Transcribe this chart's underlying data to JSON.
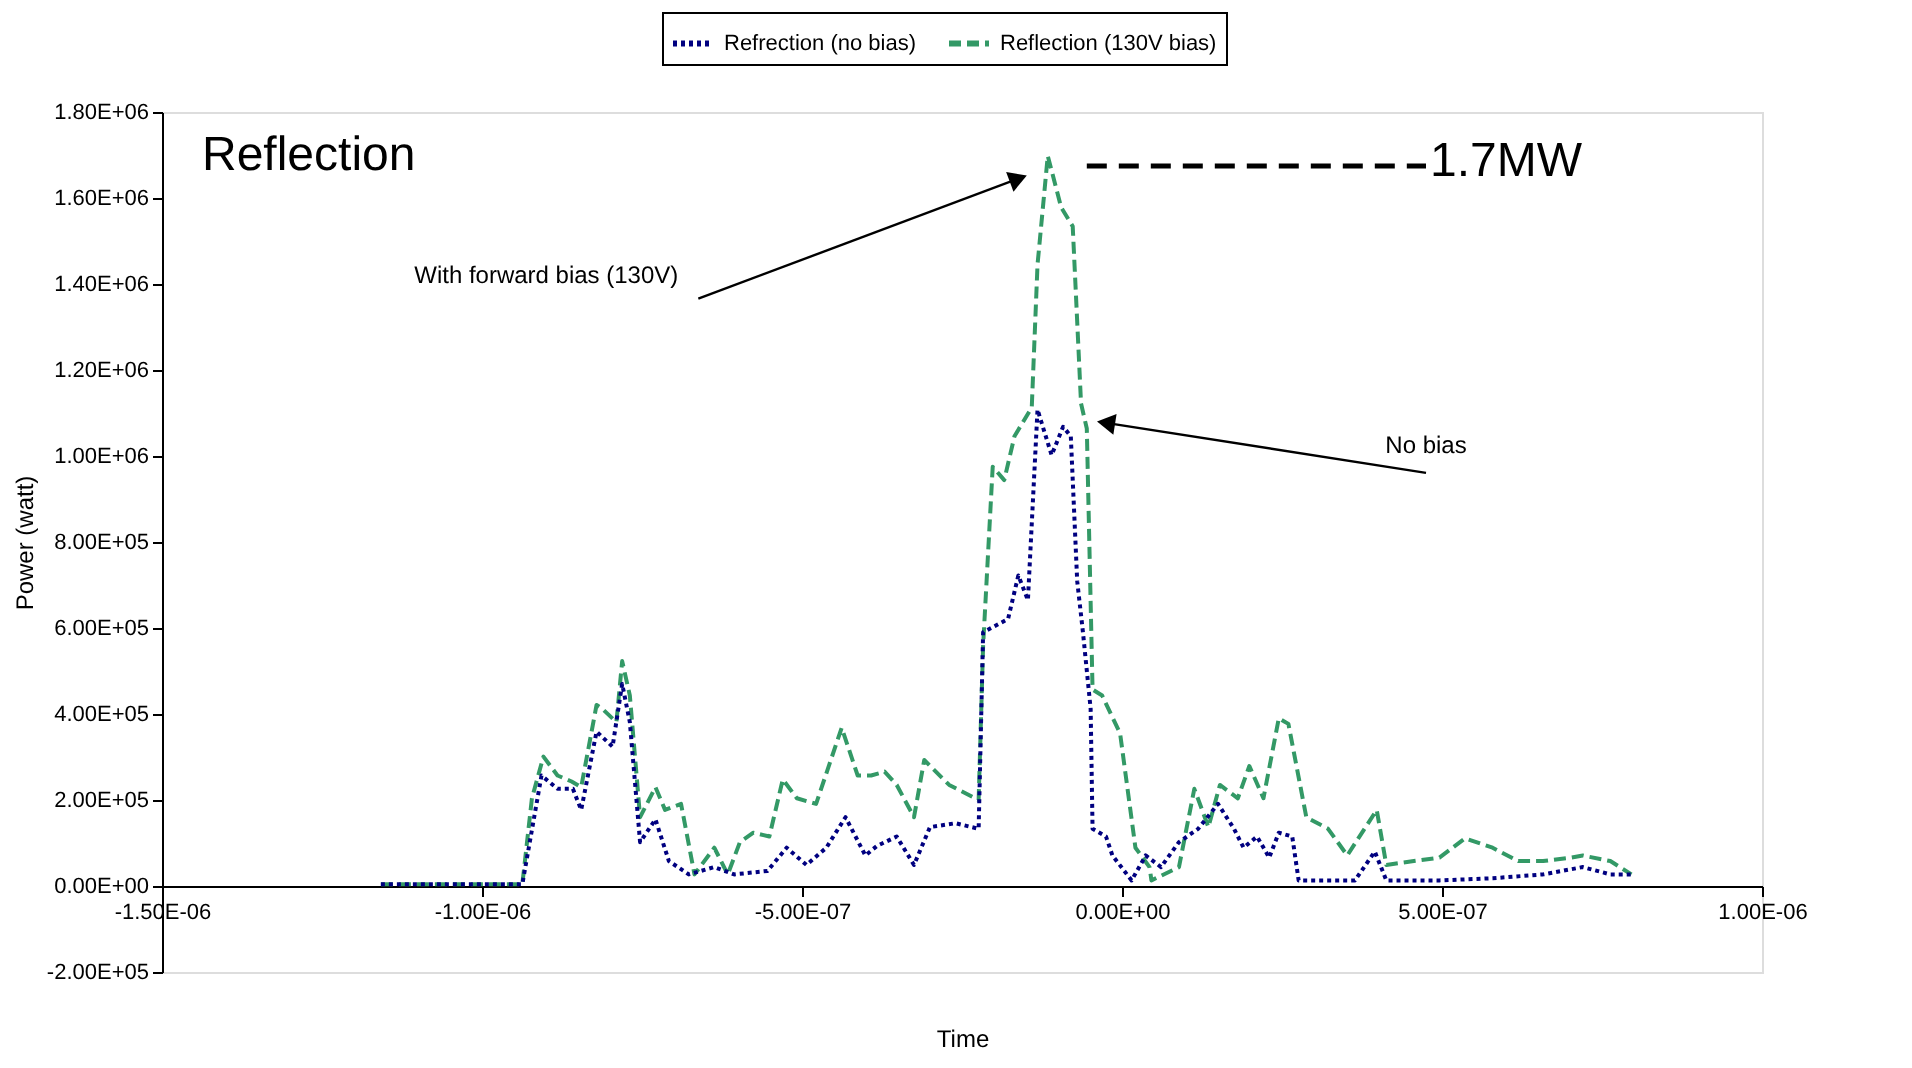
{
  "chart_data": {
    "type": "line",
    "xlabel": "Time",
    "ylabel": "Power (watt)",
    "xlim": [
      -1.5e-06,
      1e-06
    ],
    "ylim": [
      -200000,
      1800000
    ],
    "xticks": [
      {
        "value": -1.5e-06,
        "label": "-1.50E-06"
      },
      {
        "value": -1e-06,
        "label": "-1.00E-06"
      },
      {
        "value": -5e-07,
        "label": "-5.00E-07"
      },
      {
        "value": 0,
        "label": "0.00E+00"
      },
      {
        "value": 5e-07,
        "label": "5.00E-07"
      },
      {
        "value": 1e-06,
        "label": "1.00E-06"
      }
    ],
    "yticks": [
      {
        "value": -200000,
        "label": "-2.00E+05"
      },
      {
        "value": 0,
        "label": "0.00E+00"
      },
      {
        "value": 200000,
        "label": "2.00E+05"
      },
      {
        "value": 400000,
        "label": "4.00E+05"
      },
      {
        "value": 600000,
        "label": "6.00E+05"
      },
      {
        "value": 800000,
        "label": "8.00E+05"
      },
      {
        "value": 1000000,
        "label": "1.00E+06"
      },
      {
        "value": 1200000,
        "label": "1.20E+06"
      },
      {
        "value": 1400000,
        "label": "1.40E+06"
      },
      {
        "value": 1600000,
        "label": "1.60E+06"
      },
      {
        "value": 1800000,
        "label": "1.80E+06"
      }
    ],
    "grid": false,
    "legend": "top",
    "marker": "none",
    "annotations": [
      "Reflection",
      {
        "text": "With forward bias (130V)",
        "x": -1.62e-07,
        "y": 1645000
      },
      {
        "text": "No bias",
        "x": -2.5e-08,
        "y": 1077000
      },
      "1.7MW"
    ],
    "series": [
      {
        "name": "Refrection (no bias)",
        "color": "#000080",
        "line_style": "dotted",
        "x": [
          -1.158e-06,
          -9.37e-07,
          -9.07e-07,
          -8.82e-07,
          -8.58e-07,
          -8.45e-07,
          -8.21e-07,
          -7.96e-07,
          -7.81e-07,
          -7.69e-07,
          -7.53e-07,
          -7.29e-07,
          -7.08e-07,
          -6.77e-07,
          -6.37e-07,
          -6.06e-07,
          -5.54e-07,
          -5.24e-07,
          -4.93e-07,
          -4.62e-07,
          -4.32e-07,
          -4.01e-07,
          -3.83e-07,
          -3.52e-07,
          -3.25e-07,
          -3e-07,
          -2.6e-07,
          -2.24e-07,
          -2.17e-07,
          -1.78e-07,
          -1.62e-07,
          -1.47e-07,
          -1.32e-07,
          -1.1e-07,
          -9.2e-08,
          -8e-08,
          -7e-08,
          -6.1e-08,
          -5.5e-08,
          -4.9e-08,
          -4.6e-08,
          -2.5e-08,
          -1.5e-08,
          1.5e-08,
          3.7e-08,
          6.1e-08,
          8.9e-08,
          1.19e-07,
          1.5e-07,
          1.75e-07,
          1.9e-07,
          2.11e-07,
          2.3e-07,
          2.45e-07,
          2.66e-07,
          2.76e-07,
          3.22e-07,
          3.64e-07,
          3.95e-07,
          4.13e-07,
          4.96e-07,
          5.79e-07,
          6.58e-07,
          7.2e-07,
          7.63e-07,
          7.96e-07
        ],
        "values": [
          4000,
          4000,
          257000,
          226000,
          226000,
          177000,
          359000,
          324000,
          470000,
          381000,
          102000,
          155000,
          58000,
          27000,
          44000,
          27000,
          35000,
          89000,
          49000,
          89000,
          160000,
          71000,
          93000,
          115000,
          49000,
          137000,
          146000,
          133000,
          590000,
          621000,
          722000,
          665000,
          1108000,
          1002000,
          1068000,
          1046000,
          709000,
          590000,
          501000,
          412000,
          133000,
          115000,
          71000,
          13000,
          71000,
          44000,
          102000,
          133000,
          191000,
          133000,
          89000,
          115000,
          66000,
          124000,
          115000,
          13000,
          13000,
          13000,
          80000,
          13000,
          13000,
          18000,
          27000,
          44000,
          27000,
          27000
        ]
      },
      {
        "name": "Reflection (130V bias)",
        "color": "#339966",
        "line_style": "dashed",
        "x": [
          -1.158e-06,
          -9.37e-07,
          -9.22e-07,
          -9.04e-07,
          -8.82e-07,
          -8.6e-07,
          -8.45e-07,
          -8.21e-07,
          -8.12e-07,
          -7.9e-07,
          -7.81e-07,
          -7.69e-07,
          -7.53e-07,
          -7.29e-07,
          -7.14e-07,
          -6.89e-07,
          -6.68e-07,
          -6.37e-07,
          -6.16e-07,
          -5.97e-07,
          -5.76e-07,
          -5.51e-07,
          -5.3e-07,
          -5.08e-07,
          -4.78e-07,
          -4.38e-07,
          -4.13e-07,
          -3.92e-07,
          -3.71e-07,
          -3.52e-07,
          -3.25e-07,
          -3.09e-07,
          -2.7e-07,
          -2.24e-07,
          -2.17e-07,
          -2.02e-07,
          -1.84e-07,
          -1.68e-07,
          -1.41e-07,
          -1.32e-07,
          -1.16e-07,
          -9.5e-08,
          -7.7e-08,
          -6.4e-08,
          -5.5e-08,
          -4.6e-08,
          -3.1e-08,
          -3e-09,
          2.1e-08,
          4.3e-08,
          4.6e-08,
          8.9e-08,
          1.13e-07,
          1.35e-07,
          1.53e-07,
          1.81e-07,
          1.99e-07,
          2.21e-07,
          2.45e-07,
          2.6e-07,
          2.88e-07,
          3.22e-07,
          3.52e-07,
          3.98e-07,
          4.13e-07,
          4.56e-07,
          4.96e-07,
          5.36e-07,
          5.79e-07,
          6.19e-07,
          6.58e-07,
          7.01e-07,
          7.2e-07,
          7.63e-07,
          7.96e-07
        ],
        "values": [
          4000,
          4000,
          204000,
          301000,
          257000,
          243000,
          230000,
          421000,
          412000,
          381000,
          523000,
          443000,
          160000,
          230000,
          177000,
          191000,
          27000,
          89000,
          27000,
          102000,
          124000,
          115000,
          248000,
          204000,
          191000,
          368000,
          257000,
          257000,
          266000,
          235000,
          160000,
          293000,
          235000,
          200000,
          559000,
          975000,
          944000,
          1046000,
          1113000,
          1445000,
          1698000,
          1578000,
          1534000,
          1122000,
          1064000,
          457000,
          443000,
          355000,
          89000,
          44000,
          13000,
          44000,
          226000,
          137000,
          235000,
          204000,
          279000,
          204000,
          390000,
          377000,
          160000,
          133000,
          71000,
          177000,
          49000,
          58000,
          66000,
          111000,
          89000,
          58000,
          58000,
          66000,
          71000,
          58000,
          27000
        ]
      }
    ]
  }
}
